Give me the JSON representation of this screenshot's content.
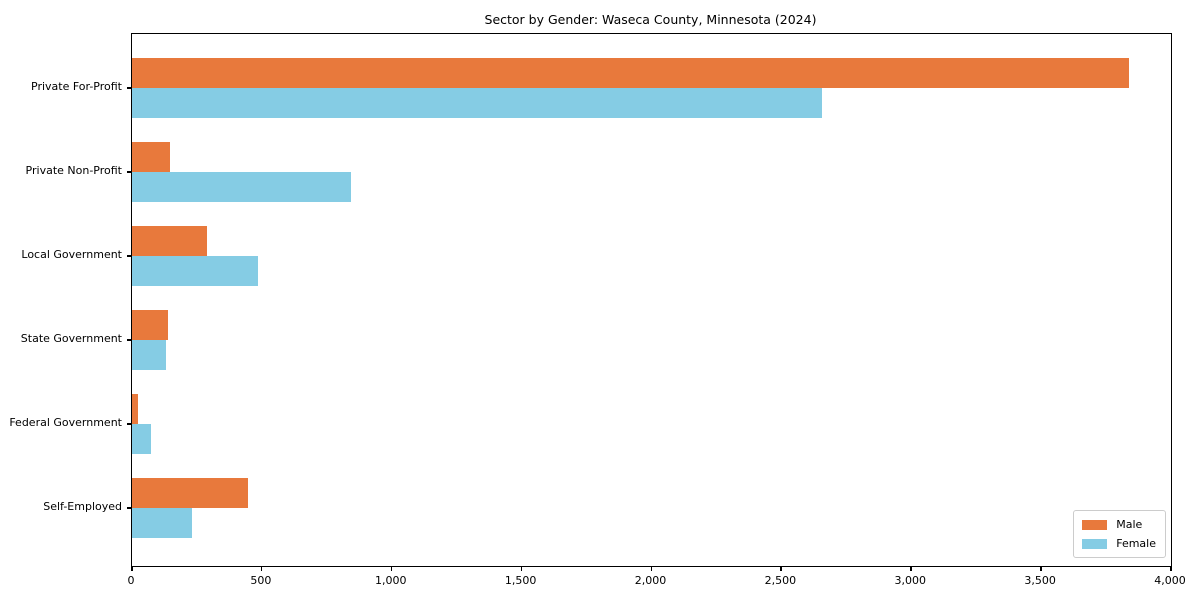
{
  "chart_data": {
    "type": "bar",
    "orientation": "horizontal",
    "title": "Sector by Gender: Waseca County, Minnesota (2024)",
    "categories": [
      "Private For-Profit",
      "Private Non-Profit",
      "Local Government",
      "State Government",
      "Federal Government",
      "Self-Employed"
    ],
    "series": [
      {
        "name": "Male",
        "color": "#e8793c",
        "values": [
          3840,
          145,
          290,
          140,
          25,
          445
        ]
      },
      {
        "name": "Female",
        "color": "#85cce4",
        "values": [
          2655,
          845,
          487,
          130,
          75,
          230
        ]
      }
    ],
    "xlabel": "",
    "ylabel": "",
    "xlim": [
      0,
      4000
    ],
    "x_tick_values": [
      0,
      500,
      1000,
      1500,
      2000,
      2500,
      3000,
      3500,
      4000
    ],
    "x_tick_labels": [
      "0",
      "500",
      "1,000",
      "1,500",
      "2,000",
      "2,500",
      "3,000",
      "3,500",
      "4,000"
    ],
    "grid": false,
    "legend": {
      "position": "lower right",
      "entries": [
        "Male",
        "Female"
      ]
    }
  }
}
